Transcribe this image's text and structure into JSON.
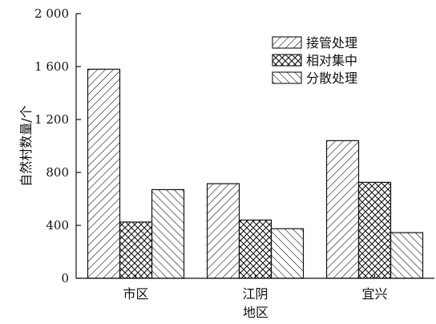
{
  "chart_data": {
    "type": "bar",
    "categories": [
      "市区",
      "江阴",
      "宜兴"
    ],
    "series": [
      {
        "name": "接管处理",
        "values": [
          1580,
          715,
          1040
        ],
        "pattern": "forward-diagonal"
      },
      {
        "name": "相对集中",
        "values": [
          425,
          440,
          725
        ],
        "pattern": "crosshatch"
      },
      {
        "name": "分散处理",
        "values": [
          670,
          375,
          345
        ],
        "pattern": "back-diagonal"
      }
    ],
    "xlabel": "地区",
    "ylabel": "自然村数量/个",
    "ylim": [
      0,
      2000
    ],
    "yticks": [
      0,
      400,
      800,
      1200,
      1600,
      2000
    ],
    "ytick_labels": [
      "0",
      "400",
      "800",
      "1 200",
      "1 600",
      "2 000"
    ],
    "grid": false,
    "legend_position": "top-right",
    "colors": {
      "line": "#111111",
      "fill": "#ffffff"
    }
  }
}
